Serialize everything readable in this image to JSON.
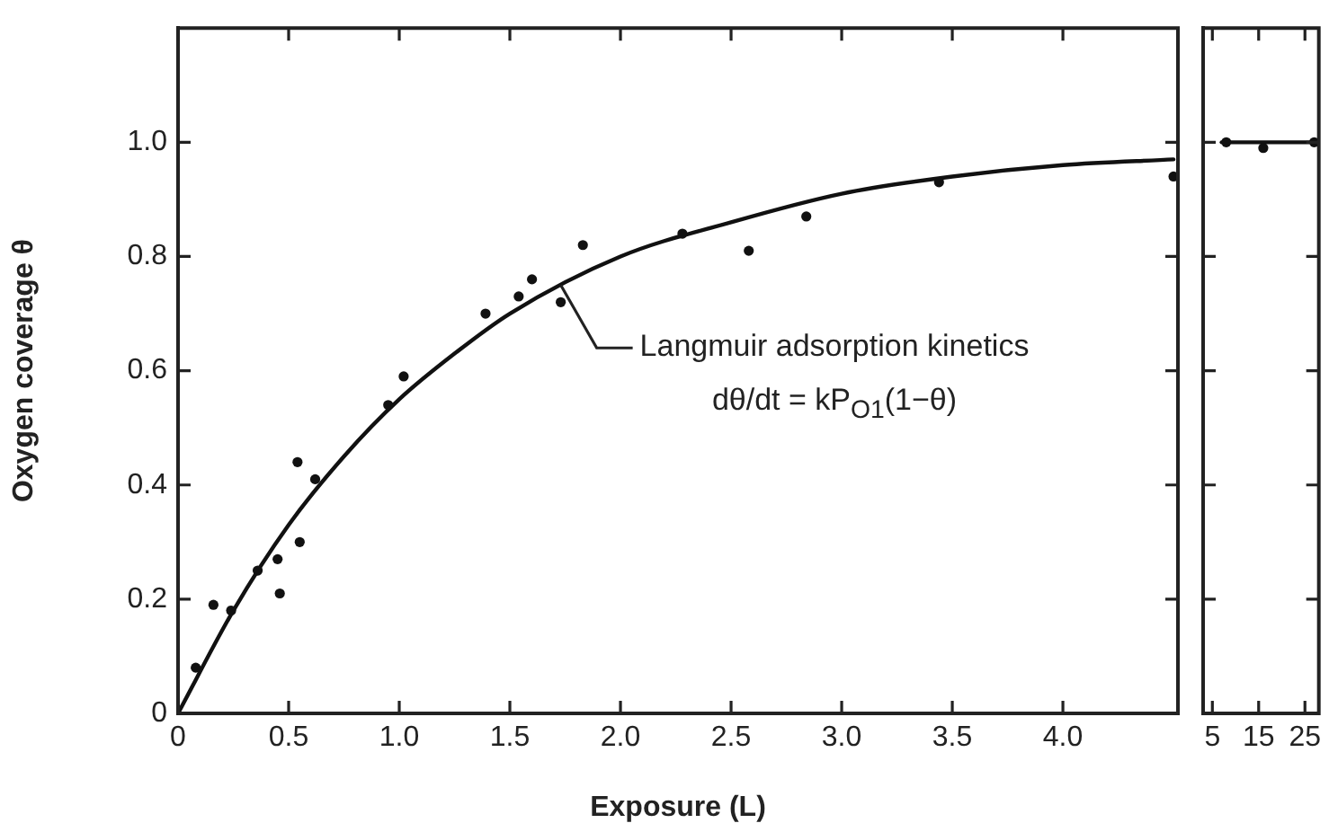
{
  "chart_data": [
    {
      "type": "scatter",
      "xlabel": "Exposure (L)",
      "ylabel": "Oxygen coverage θ",
      "xlim": [
        0,
        4.52
      ],
      "ylim": [
        0,
        1.2
      ],
      "xticks": [
        0,
        0.5,
        {
          "value": 1,
          "label": "1.0"
        },
        1.5,
        {
          "value": 2,
          "label": "2.0"
        },
        2.5,
        {
          "value": 3,
          "label": "3.0"
        },
        3.5,
        {
          "value": 4,
          "label": "4.0"
        }
      ],
      "yticks": [
        0,
        0.2,
        0.4,
        0.6,
        0.8,
        {
          "value": 1,
          "label": "1.0"
        }
      ],
      "annotations": [
        {
          "text": "Langmuir adsorption kinetics",
          "x": 1.73,
          "y": 0.75
        },
        "dθ/dt = kP$_{O1}$(1−θ)"
      ],
      "series": [
        {
          "type": "scatter",
          "marker": "circle",
          "color": "#111111",
          "x": [
            0.08,
            0.16,
            0.24,
            0.36,
            0.45,
            0.46,
            0.54,
            0.55,
            0.62,
            0.95,
            1.02,
            1.39,
            1.54,
            1.6,
            1.73,
            1.83,
            2.28,
            2.58,
            2.84,
            3.44,
            4.5
          ],
          "values": [
            0.08,
            0.19,
            0.18,
            0.25,
            0.27,
            0.21,
            0.44,
            0.3,
            0.41,
            0.54,
            0.59,
            0.7,
            0.73,
            0.76,
            0.72,
            0.82,
            0.84,
            0.81,
            0.87,
            0.93,
            0.94
          ]
        },
        {
          "type": "line",
          "color": "#111111",
          "x": [
            0,
            0.25,
            0.5,
            0.75,
            1,
            1.25,
            1.5,
            2,
            2.5,
            3,
            3.5,
            4,
            4.5
          ],
          "values": [
            0,
            0.18,
            0.33,
            0.45,
            0.55,
            0.63,
            0.7,
            0.8,
            0.86,
            0.91,
            0.94,
            0.96,
            0.97
          ]
        }
      ]
    },
    {
      "type": "scatter",
      "xlim": [
        3,
        28
      ],
      "ylim": [
        0,
        1.2
      ],
      "xticks": [
        5,
        15,
        25
      ],
      "yticks": [
        0,
        0.2,
        0.4,
        0.6,
        0.8,
        1
      ],
      "tick_labels": "x",
      "series": [
        {
          "type": "scatter",
          "marker": "circle",
          "color": "#111111",
          "x": [
            8,
            16,
            27
          ],
          "values": [
            1.0,
            0.99,
            1.0
          ]
        },
        {
          "type": "line",
          "color": "#111111",
          "x": [
            7,
            28
          ],
          "values": [
            1.0,
            1.0
          ]
        }
      ]
    }
  ]
}
